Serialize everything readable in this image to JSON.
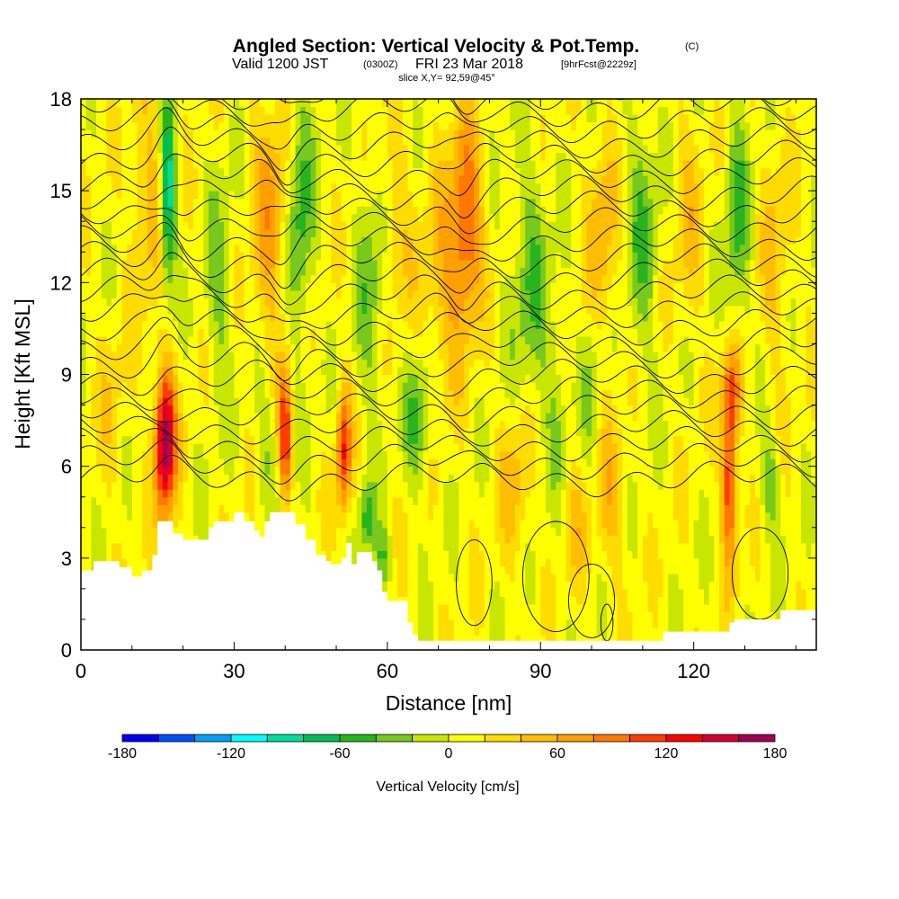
{
  "chart_data": {
    "type": "heatmap",
    "title": "Angled Section: Vertical Velocity & Pot.Temp.",
    "title_mark": "(C)",
    "subtitle_parts": [
      "Valid 1200 JST",
      "(0300Z)",
      "FRI 23 Mar 2018",
      "[9hrFcst@2229z]"
    ],
    "slice_label": "slice X,Y= 92,59@45°",
    "xlabel": "Distance [nm]",
    "ylabel": "Height [Kft MSL]",
    "xlim": [
      0,
      144
    ],
    "ylim": [
      0,
      18
    ],
    "x_ticks": [
      "0",
      "30",
      "60",
      "90",
      "120"
    ],
    "x_tick_values": [
      0,
      30,
      60,
      90,
      120
    ],
    "y_ticks": [
      "0",
      "3",
      "6",
      "9",
      "12",
      "15",
      "18"
    ],
    "y_tick_values": [
      0,
      3,
      6,
      9,
      12,
      15,
      18
    ],
    "colorbar": {
      "label": "Vertical Velocity [cm/s]",
      "min": -180,
      "max": 180,
      "step": 20,
      "tick_labels": [
        "-180",
        "-120",
        "-60",
        "0",
        "60",
        "120",
        "180"
      ],
      "tick_values": [
        -180,
        -120,
        -60,
        0,
        60,
        120,
        180
      ],
      "colors": [
        "#0000f0",
        "#0050f5",
        "#00a0f5",
        "#00ffff",
        "#00dc9b",
        "#00be50",
        "#28b41e",
        "#78c81e",
        "#c8e600",
        "#ffff00",
        "#ffdc00",
        "#ffbe00",
        "#ffa000",
        "#ff7800",
        "#ff3c00",
        "#ff0000",
        "#d20032",
        "#a00055"
      ]
    },
    "terrain": [
      [
        0,
        2.6
      ],
      [
        2.5,
        2.9
      ],
      [
        7.5,
        2.7
      ],
      [
        10,
        2.4
      ],
      [
        12,
        2.6
      ],
      [
        14,
        3.1
      ],
      [
        15,
        4.2
      ],
      [
        17,
        4.2
      ],
      [
        18,
        3.8
      ],
      [
        20,
        3.6
      ],
      [
        24,
        3.6
      ],
      [
        25,
        4.0
      ],
      [
        26,
        4.2
      ],
      [
        28,
        4.2
      ],
      [
        30,
        4.5
      ],
      [
        32,
        4.2
      ],
      [
        34,
        3.9
      ],
      [
        35,
        3.7
      ],
      [
        36,
        4.2
      ],
      [
        37,
        4.5
      ],
      [
        40,
        4.5
      ],
      [
        42,
        4.1
      ],
      [
        44,
        3.6
      ],
      [
        46,
        3.1
      ],
      [
        48,
        2.9
      ],
      [
        49,
        2.8
      ],
      [
        51,
        3.0
      ],
      [
        52,
        3.5
      ],
      [
        53,
        2.8
      ],
      [
        54,
        3.2
      ],
      [
        56,
        3.2
      ],
      [
        57,
        2.9
      ],
      [
        58,
        2.6
      ],
      [
        59,
        1.9
      ],
      [
        60,
        1.6
      ],
      [
        63,
        1.6
      ],
      [
        64,
        0.9
      ],
      [
        65,
        0.5
      ],
      [
        66,
        0.3
      ],
      [
        113,
        0.3
      ],
      [
        114,
        0.6
      ],
      [
        126,
        0.6
      ],
      [
        127,
        0.9
      ],
      [
        128,
        1.0
      ],
      [
        136,
        1.0
      ],
      [
        137,
        1.3
      ],
      [
        144,
        1.3
      ]
    ],
    "updrafts": [
      {
        "x": 16.5,
        "y": 6.8,
        "w": 2.0,
        "h": 2.4,
        "peak": 170
      },
      {
        "x": 16.0,
        "y": 15.5,
        "w": 2.5,
        "h": 2.8,
        "peak": 40
      },
      {
        "x": 40.0,
        "y": 7.0,
        "w": 1.2,
        "h": 2.0,
        "peak": 110
      },
      {
        "x": 51.5,
        "y": 6.5,
        "w": 1.4,
        "h": 2.0,
        "peak": 110
      },
      {
        "x": 75.5,
        "y": 14.0,
        "w": 3.0,
        "h": 3.2,
        "peak": 90
      },
      {
        "x": 71.0,
        "y": 12.0,
        "w": 4.5,
        "h": 3.5,
        "peak": 40
      },
      {
        "x": 37.0,
        "y": 14.0,
        "w": 3.5,
        "h": 4.0,
        "peak": 55
      },
      {
        "x": 127.0,
        "y": 5.5,
        "w": 1.4,
        "h": 2.6,
        "peak": 120
      },
      {
        "x": 127.5,
        "y": 8.5,
        "w": 2.0,
        "h": 1.5,
        "peak": 80
      },
      {
        "x": 12.0,
        "y": 14.5,
        "w": 2.5,
        "h": 3.5,
        "peak": 35
      },
      {
        "x": 102.0,
        "y": 13.5,
        "w": 3.0,
        "h": 3.5,
        "peak": 45
      },
      {
        "x": 119.0,
        "y": 14.0,
        "w": 3.0,
        "h": 3.5,
        "peak": 30
      },
      {
        "x": 136.0,
        "y": 13.0,
        "w": 3.0,
        "h": 4.0,
        "peak": 30
      },
      {
        "x": 61.0,
        "y": 14.0,
        "w": 3.5,
        "h": 3.5,
        "peak": 30
      },
      {
        "x": 85.0,
        "y": 5.5,
        "w": 3.0,
        "h": 2.5,
        "peak": 40
      },
      {
        "x": 103.5,
        "y": 5.0,
        "w": 3.0,
        "h": 2.5,
        "peak": 40
      },
      {
        "x": 97.0,
        "y": 4.0,
        "w": 2.5,
        "h": 2.0,
        "peak": 30
      },
      {
        "x": 6.0,
        "y": 8.0,
        "w": 3.0,
        "h": 3.0,
        "peak": 20
      }
    ],
    "downdrafts": [
      {
        "x": 17.0,
        "y": 15.0,
        "w": 1.5,
        "h": 3.0,
        "peak": -130
      },
      {
        "x": 43.0,
        "y": 14.5,
        "w": 2.5,
        "h": 4.0,
        "peak": -60
      },
      {
        "x": 56.0,
        "y": 4.3,
        "w": 1.5,
        "h": 1.2,
        "peak": -60
      },
      {
        "x": 66.0,
        "y": 7.5,
        "w": 2.5,
        "h": 2.0,
        "peak": -55
      },
      {
        "x": 57.0,
        "y": 12.0,
        "w": 3.0,
        "h": 4.0,
        "peak": -45
      },
      {
        "x": 88.0,
        "y": 12.0,
        "w": 4.0,
        "h": 4.0,
        "peak": -45
      },
      {
        "x": 110.0,
        "y": 13.5,
        "w": 3.0,
        "h": 4.0,
        "peak": -45
      },
      {
        "x": 128.5,
        "y": 14.0,
        "w": 2.5,
        "h": 4.0,
        "peak": -50
      },
      {
        "x": 135.0,
        "y": 5.5,
        "w": 2.0,
        "h": 1.5,
        "peak": -45
      },
      {
        "x": 27.0,
        "y": 12.0,
        "w": 2.5,
        "h": 4.0,
        "peak": -35
      },
      {
        "x": 93.0,
        "y": 8.0,
        "w": 2.5,
        "h": 3.0,
        "peak": -25
      },
      {
        "x": 100.0,
        "y": 8.5,
        "w": 2.0,
        "h": 3.0,
        "peak": -30
      },
      {
        "x": 36.0,
        "y": 6.5,
        "w": 2.0,
        "h": 2.0,
        "peak": -30
      },
      {
        "x": 59.0,
        "y": 3.0,
        "w": 1.5,
        "h": 1.0,
        "peak": -50
      }
    ]
  }
}
